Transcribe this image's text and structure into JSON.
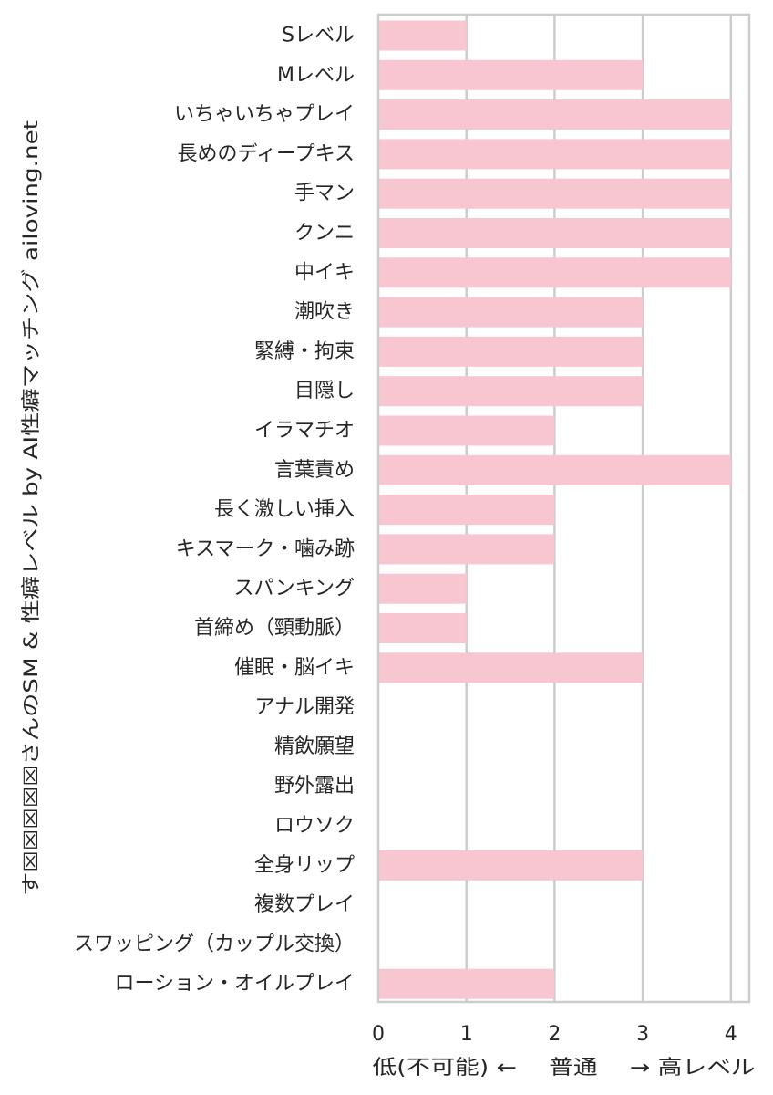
{
  "chart_data": {
    "type": "bar",
    "orientation": "horizontal",
    "ylabel": "す☒☒☒☒☒さんのSM & 性癖レベル by AI性癖マッチング ailoving.net",
    "xlabel": "低(不可能) ←　 普通 　→ 高レベル",
    "xlim": [
      0,
      4.2
    ],
    "xticks": [
      0,
      1,
      2,
      3,
      4
    ],
    "grid": true,
    "bar_color": "#f7c6d0",
    "categories": [
      "Sレベル",
      "Mレベル",
      "いちゃいちゃプレイ",
      "長めのディープキス",
      "手マン",
      "クンニ",
      "中イキ",
      "潮吹き",
      "緊縛・拘束",
      "目隠し",
      "イラマチオ",
      "言葉責め",
      "長く激しい挿入",
      "キスマーク・噛み跡",
      "スパンキング",
      "首締め（頸動脈）",
      "催眠・脳イキ",
      "アナル開発",
      "精飲願望",
      "野外露出",
      "ロウソク",
      "全身リップ",
      "複数プレイ",
      "スワッピング（カップル交換）",
      "ローション・オイルプレイ"
    ],
    "values": [
      1,
      3,
      4,
      4,
      4,
      4,
      4,
      3,
      3,
      3,
      2,
      4,
      2,
      2,
      1,
      1,
      3,
      0,
      0,
      0,
      0,
      3,
      0,
      0,
      2
    ]
  }
}
